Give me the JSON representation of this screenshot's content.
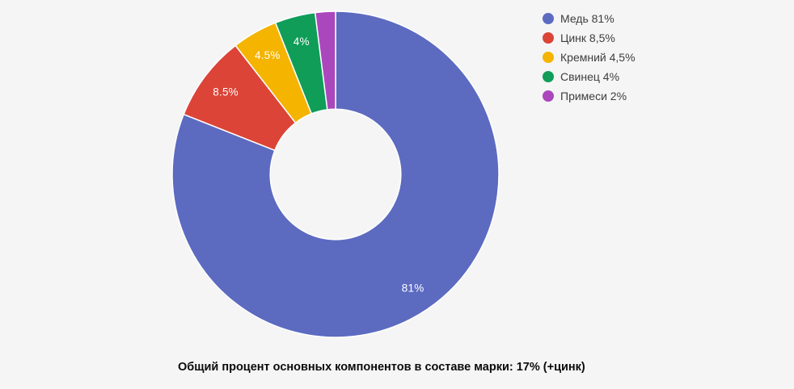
{
  "page": {
    "background_color": "#f5f5f6"
  },
  "chart_data": {
    "type": "pie",
    "subtype": "donut",
    "pie_hole": 0.4,
    "start_angle_deg": 0,
    "direction": "clockwise",
    "unit": "%",
    "title": "",
    "categories": [
      "Медь",
      "Цинк",
      "Кремний",
      "Свинец",
      "Примеси"
    ],
    "values": [
      81,
      8.5,
      4.5,
      4,
      2
    ],
    "slices": [
      {
        "id": "copper",
        "label": "Медь",
        "value": 81,
        "color": "#5C6BC0",
        "slice_label": "81%",
        "legend_label": "Медь 81%"
      },
      {
        "id": "zinc",
        "label": "Цинк",
        "value": 8.5,
        "color": "#DB4437",
        "slice_label": "8.5%",
        "legend_label": "Цинк 8,5%"
      },
      {
        "id": "silicon",
        "label": "Кремний",
        "value": 4.5,
        "color": "#F4B400",
        "slice_label": "4.5%",
        "legend_label": "Кремний 4,5%"
      },
      {
        "id": "lead",
        "label": "Свинец",
        "value": 4,
        "color": "#0F9D58",
        "slice_label": "4%",
        "legend_label": "Свинец 4%"
      },
      {
        "id": "impurities",
        "label": "Примеси",
        "value": 2,
        "color": "#AB47BC",
        "slice_label": null,
        "legend_label": "Примеси 2%"
      }
    ],
    "slice_label_color": "#ffffff",
    "slice_border_color": "#ffffff",
    "legend_position": "right-top",
    "legend_text_color": "#3e3e3e",
    "caption": "Общий процент основных компонентов в составе марки: 17% (+цинк)"
  }
}
